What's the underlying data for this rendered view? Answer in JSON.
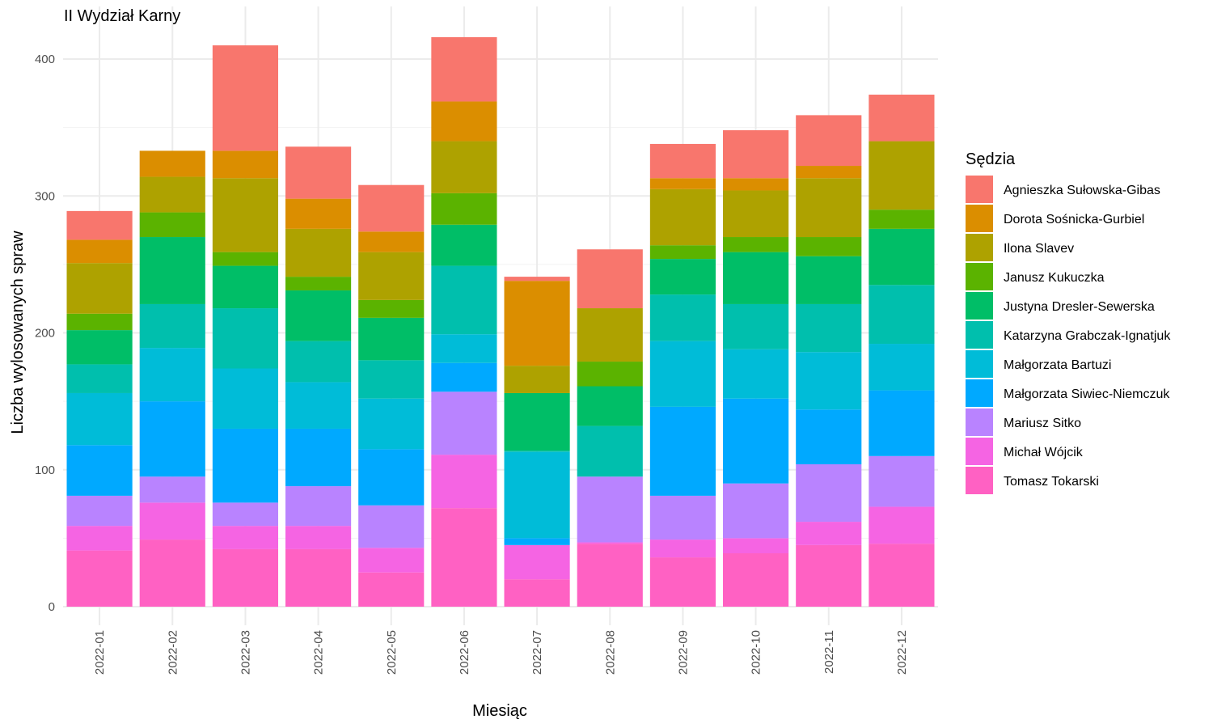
{
  "chart_data": {
    "type": "bar",
    "stacked": true,
    "title": "II Wydział Karny",
    "xlabel": "Miesiąc",
    "ylabel": "Liczba wylosowanych spraw",
    "ylim": [
      0,
      420
    ],
    "yticks": [
      0,
      100,
      200,
      300,
      400
    ],
    "grid": true,
    "legend": {
      "title": "Sędzia",
      "position": "right"
    },
    "categories": [
      "2022-01",
      "2022-02",
      "2022-03",
      "2022-04",
      "2022-05",
      "2022-06",
      "2022-07",
      "2022-08",
      "2022-09",
      "2022-10",
      "2022-11",
      "2022-12"
    ],
    "series": [
      {
        "name": "Tomasz Tokarski",
        "color": "#FF61C3",
        "values": [
          41,
          49,
          42,
          42,
          25,
          72,
          20,
          46,
          36,
          39,
          45,
          46
        ]
      },
      {
        "name": "Michał Wójcik",
        "color": "#F564E3",
        "values": [
          18,
          27,
          17,
          17,
          18,
          39,
          25,
          1,
          13,
          11,
          17,
          27
        ]
      },
      {
        "name": "Mariusz Sitko",
        "color": "#B983FF",
        "values": [
          22,
          19,
          17,
          29,
          31,
          46,
          0,
          48,
          32,
          40,
          42,
          37
        ]
      },
      {
        "name": "Małgorzata Siwiec-Niemczuk",
        "color": "#00A9FF",
        "values": [
          37,
          55,
          54,
          42,
          41,
          21,
          5,
          0,
          65,
          62,
          40,
          48
        ]
      },
      {
        "name": "Małgorzata Bartuzi",
        "color": "#00BCD8",
        "values": [
          38,
          39,
          44,
          34,
          37,
          21,
          63,
          0,
          48,
          36,
          42,
          34
        ]
      },
      {
        "name": "Katarzyna Grabczak-Ignatjuk",
        "color": "#00BFAD",
        "values": [
          21,
          32,
          44,
          30,
          28,
          50,
          1,
          37,
          34,
          33,
          35,
          43
        ]
      },
      {
        "name": "Justyna Dresler-Sewerska",
        "color": "#00BE67",
        "values": [
          25,
          49,
          31,
          37,
          31,
          30,
          42,
          29,
          26,
          38,
          35,
          41
        ]
      },
      {
        "name": "Janusz Kukuczka",
        "color": "#5BB300",
        "values": [
          12,
          18,
          10,
          10,
          13,
          23,
          0,
          18,
          10,
          11,
          14,
          14
        ]
      },
      {
        "name": "Ilona Slavev",
        "color": "#AEA200",
        "values": [
          37,
          26,
          54,
          35,
          35,
          38,
          20,
          39,
          41,
          34,
          43,
          50
        ]
      },
      {
        "name": "Dorota Sośnicka-Gurbiel",
        "color": "#DB8E00",
        "values": [
          17,
          19,
          20,
          22,
          15,
          29,
          62,
          0,
          8,
          9,
          9,
          0
        ]
      },
      {
        "name": "Agnieszka Sułowska-Gibas",
        "color": "#F8766D",
        "values": [
          21,
          0,
          77,
          38,
          34,
          47,
          3,
          43,
          25,
          35,
          37,
          34
        ]
      }
    ]
  }
}
